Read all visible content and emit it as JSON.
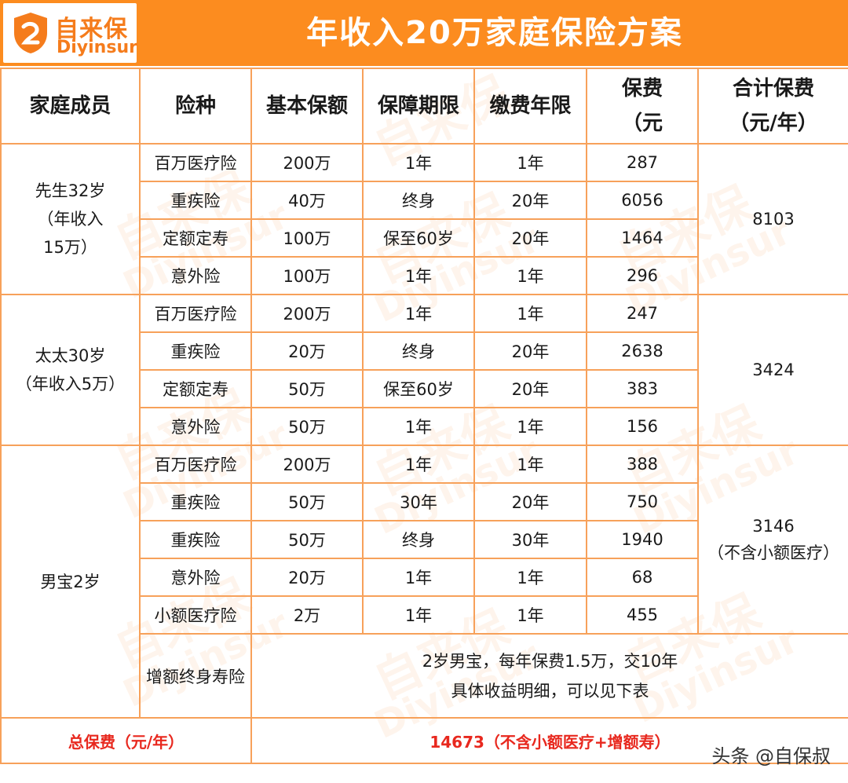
{
  "brand": {
    "name_cn": "自来保",
    "name_en": "Diyinsur",
    "color": "#fc8c1f"
  },
  "title": "年收入20万家庭保险方案",
  "headers": {
    "member": "家庭成员",
    "type": "险种",
    "amount": "基本保额",
    "term": "保障期限",
    "pay_years": "缴费年限",
    "premium_l1": "保费",
    "premium_l2": "（元",
    "total_l1": "合计保费",
    "total_l2": "（元/年）"
  },
  "groups": [
    {
      "member_lines": [
        "先生32岁",
        "（年收入",
        "15万）"
      ],
      "total_lines": [
        "8103"
      ],
      "rows": [
        {
          "type": "百万医疗险",
          "amount": "200万",
          "term": "1年",
          "pay": "1年",
          "premium": "287"
        },
        {
          "type": "重疾险",
          "amount": "40万",
          "term": "终身",
          "pay": "20年",
          "premium": "6056"
        },
        {
          "type": "定额定寿",
          "amount": "100万",
          "term": "保至60岁",
          "pay": "20年",
          "premium": "1464"
        },
        {
          "type": "意外险",
          "amount": "100万",
          "term": "1年",
          "pay": "1年",
          "premium": "296"
        }
      ]
    },
    {
      "member_lines": [
        "太太30岁",
        "（年收入5万）"
      ],
      "total_lines": [
        "3424"
      ],
      "rows": [
        {
          "type": "百万医疗险",
          "amount": "200万",
          "term": "1年",
          "pay": "1年",
          "premium": "247"
        },
        {
          "type": "重疾险",
          "amount": "20万",
          "term": "终身",
          "pay": "20年",
          "premium": "2638"
        },
        {
          "type": "定额定寿",
          "amount": "50万",
          "term": "保至60岁",
          "pay": "20年",
          "premium": "383"
        },
        {
          "type": "意外险",
          "amount": "50万",
          "term": "1年",
          "pay": "1年",
          "premium": "156"
        }
      ]
    },
    {
      "member_lines": [
        "男宝2岁"
      ],
      "total_lines": [
        "3146",
        "（不含小额医疗）"
      ],
      "rows": [
        {
          "type": "百万医疗险",
          "amount": "200万",
          "term": "1年",
          "pay": "1年",
          "premium": "388"
        },
        {
          "type": "重疾险",
          "amount": "50万",
          "term": "30年",
          "pay": "20年",
          "premium": "750"
        },
        {
          "type": "重疾险",
          "amount": "50万",
          "term": "终身",
          "pay": "30年",
          "premium": "1940"
        },
        {
          "type": "意外险",
          "amount": "20万",
          "term": "1年",
          "pay": "1年",
          "premium": "68"
        },
        {
          "type": "小额医疗险",
          "amount": "2万",
          "term": "1年",
          "pay": "1年",
          "premium": "455"
        }
      ],
      "extra": {
        "type": "增额终身寿险",
        "note_lines": [
          "2岁男宝，每年保费1.5万，交10年",
          "具体收益明细，可以见下表"
        ]
      }
    }
  ],
  "grand_total": {
    "label": "总保费（元/年）",
    "value": "14673（不含小额医疗+增额寿）"
  },
  "credit": "头条 @自保叔"
}
